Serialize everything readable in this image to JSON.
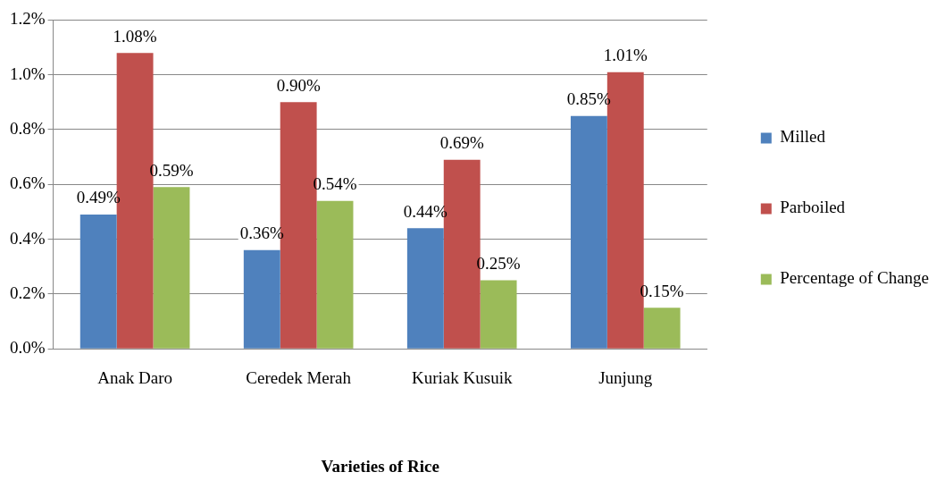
{
  "chart_data": {
    "type": "bar",
    "xlabel": "Varieties of Rice",
    "categories": [
      "Anak Daro",
      "Ceredek Merah",
      "Kuriak Kusuik",
      "Junjung"
    ],
    "series": [
      {
        "name": "Milled",
        "color": "#4f81bd",
        "values": [
          0.49,
          0.36,
          0.44,
          0.85
        ],
        "value_labels": [
          "0.49%",
          "0.36%",
          "0.44%",
          "0.85%"
        ]
      },
      {
        "name": "Parboiled",
        "color": "#c0504d",
        "values": [
          1.08,
          0.9,
          0.69,
          1.01
        ],
        "value_labels": [
          "1.08%",
          "0.90%",
          "0.69%",
          "1.01%"
        ]
      },
      {
        "name": "Percentage of Change",
        "color": "#9bbb59",
        "values": [
          0.59,
          0.54,
          0.25,
          0.15
        ],
        "value_labels": [
          "0.59%",
          "0.54%",
          "0.25%",
          "0.15%"
        ]
      }
    ],
    "ylim": [
      0,
      1.2
    ],
    "yticks": [
      {
        "value": 0,
        "label": "0.0%"
      },
      {
        "value": 0.2,
        "label": "0.2%"
      },
      {
        "value": 0.4,
        "label": "0.4%"
      },
      {
        "value": 0.6,
        "label": "0.6%"
      },
      {
        "value": 0.8,
        "label": "0.8%"
      },
      {
        "value": 1.0,
        "label": "1.0%"
      },
      {
        "value": 1.2,
        "label": "1.2%"
      }
    ],
    "grid": "y",
    "legend": "right"
  }
}
